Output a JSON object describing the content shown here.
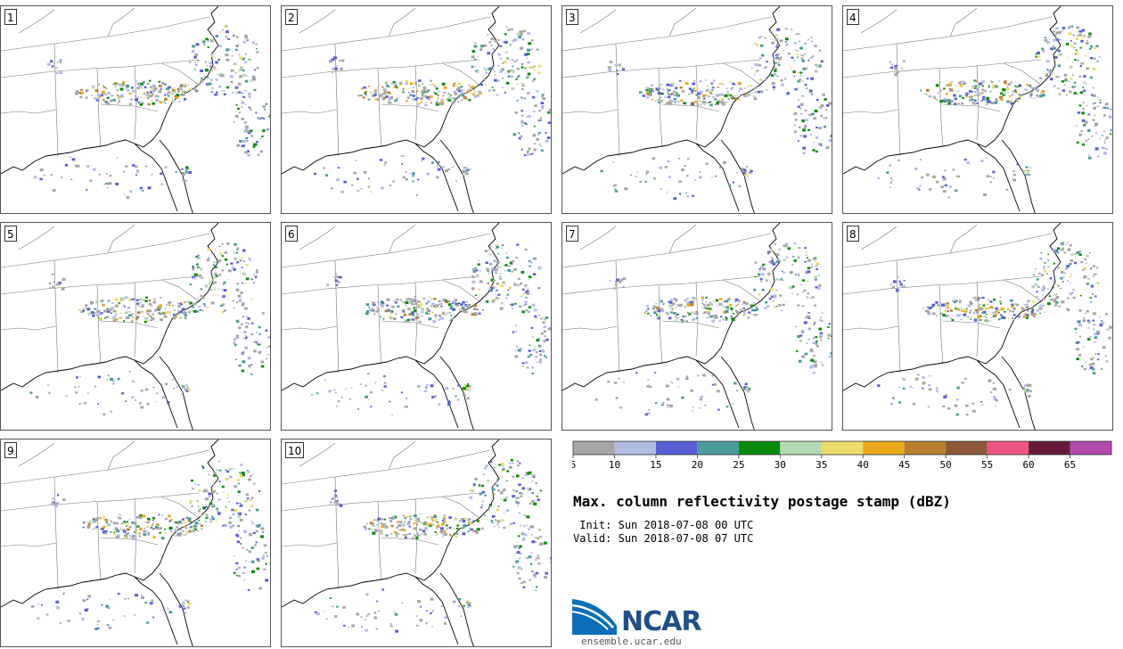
{
  "title": "Max. column reflectivity postage stamp (dBZ)",
  "init_label": " Init:",
  "init_time": "Sun 2018-07-08 00 UTC",
  "valid_label": "Valid:",
  "valid_time": "Sun 2018-07-08 07 UTC",
  "site_url": "ensemble.ucar.edu",
  "logo_text": "NCAR",
  "members": [
    {
      "label": "1"
    },
    {
      "label": "2"
    },
    {
      "label": "3"
    },
    {
      "label": "4"
    },
    {
      "label": "5"
    },
    {
      "label": "6"
    },
    {
      "label": "7"
    },
    {
      "label": "8"
    },
    {
      "label": "9"
    },
    {
      "label": "10"
    }
  ],
  "colorbar": {
    "unit": "dBZ",
    "bins": [
      {
        "min": 5,
        "color": "#a6a6a6"
      },
      {
        "min": 10,
        "color": "#b2bbe6"
      },
      {
        "min": 15,
        "color": "#5a5ed6"
      },
      {
        "min": 20,
        "color": "#4b9a9c"
      },
      {
        "min": 25,
        "color": "#0a8a0a"
      },
      {
        "min": 30,
        "color": "#b6d9b6"
      },
      {
        "min": 35,
        "color": "#ecdc6c"
      },
      {
        "min": 40,
        "color": "#eaaa1c"
      },
      {
        "min": 45,
        "color": "#b87f30"
      },
      {
        "min": 50,
        "color": "#8b5a3a"
      },
      {
        "min": 55,
        "color": "#ee5582"
      },
      {
        "min": 60,
        "color": "#661a3a"
      },
      {
        "min": 65,
        "color": "#b14aab"
      }
    ],
    "tick_labels": [
      "5",
      "10",
      "15",
      "20",
      "25",
      "30",
      "35",
      "40",
      "45",
      "50",
      "55",
      "60",
      "65"
    ]
  },
  "colors": {
    "map_border": "#555555",
    "coastline": "#000000",
    "state_lines": "#777777",
    "logo_blue": "#1f4e8c"
  }
}
